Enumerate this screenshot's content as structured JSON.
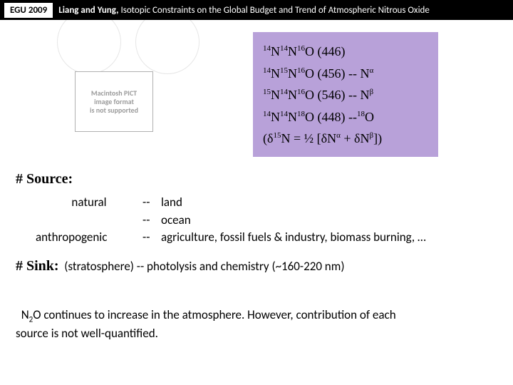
{
  "header": {
    "badge": "EGU 2009",
    "authors": "Liang and Yung,",
    "title": "Isotopic Constraints on the Global Budget and Trend of Atmospheric Nitrous Oxide"
  },
  "pict": {
    "l1": "Macintosh PICT",
    "l2": "image format",
    "l3": "is not supported"
  },
  "iso": {
    "r1a": "14",
    "r1b": "N",
    "r1c": "14",
    "r1d": "N",
    "r1e": "16",
    "r1f": "O (446)",
    "r2a": "14",
    "r2b": "N",
    "r2c": "15",
    "r2d": "N",
    "r2e": "16",
    "r2f": "O (456) -- N",
    "r2g": "α",
    "r3a": "15",
    "r3b": "N",
    "r3c": "14",
    "r3d": "N",
    "r3e": "16",
    "r3f": "O (546) -- N",
    "r3g": "β",
    "r4a": "14",
    "r4b": "N",
    "r4c": "14",
    "r4d": "N",
    "r4e": "18",
    "r4f": "O (448) --",
    "r4g": "18",
    "r4h": "O",
    "r5a": "(δ",
    "r5b": "15",
    "r5c": "N = ½ [δN",
    "r5d": "α",
    "r5e": " + δN",
    "r5f": "β",
    "r5g": "])"
  },
  "source": {
    "heading": "# Source:",
    "natural": "natural",
    "land": "land",
    "ocean": "ocean",
    "anthro": "anthropogenic",
    "anthro_items": "agriculture, fossil fuels & industry, biomass burning, …",
    "dash": "--"
  },
  "sink": {
    "heading": "# Sink:",
    "text": "(stratosphere) -- photolysis and chemistry  (~160-220 nm)"
  },
  "note": {
    "l1a": "N",
    "l1b": "2",
    "l1c": "O continues to increase in the atmosphere.  However, contribution of each",
    "l2": "source is not well-quantified."
  }
}
